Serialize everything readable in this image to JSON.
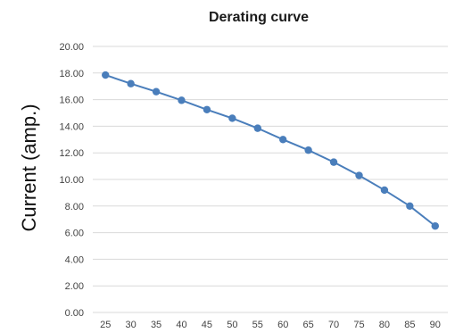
{
  "chart_data": {
    "type": "line",
    "title": "Derating curve",
    "xlabel": "",
    "ylabel": "Current (amp.)",
    "x": [
      25,
      30,
      35,
      40,
      45,
      50,
      55,
      60,
      65,
      70,
      75,
      80,
      85,
      90
    ],
    "x_tick_labels": [
      "25",
      "30",
      "35",
      "40",
      "45",
      "50",
      "55",
      "60",
      "65",
      "70",
      "75",
      "80",
      "85",
      "90"
    ],
    "y_tick_labels": [
      "0.00",
      "2.00",
      "4.00",
      "6.00",
      "8.00",
      "10.00",
      "12.00",
      "14.00",
      "16.00",
      "18.00",
      "20.00"
    ],
    "series": [
      {
        "values": [
          17.85,
          17.2,
          16.6,
          15.95,
          15.25,
          14.6,
          13.85,
          13.0,
          12.2,
          11.3,
          10.3,
          9.2,
          8.0,
          6.5
        ]
      }
    ],
    "ylim": [
      0,
      20
    ],
    "grid": true,
    "colors": {
      "series": "#4a7ebb",
      "grid": "#d9d9d9"
    }
  }
}
